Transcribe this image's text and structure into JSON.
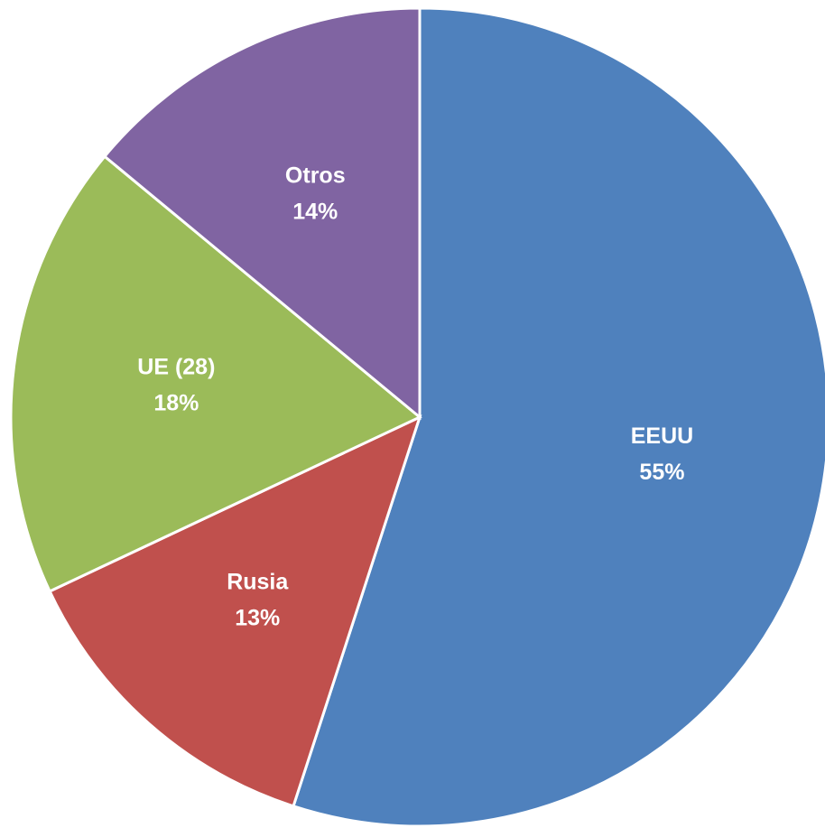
{
  "chart_data": {
    "type": "pie",
    "categories": [
      "EEUU",
      "Rusia",
      "UE (28)",
      "Otros"
    ],
    "values": [
      55,
      13,
      18,
      14
    ],
    "value_labels": [
      "55%",
      "13%",
      "18%",
      "14%"
    ],
    "colors": [
      "#4f81bd",
      "#c0504d",
      "#9bbb59",
      "#8064a2"
    ]
  }
}
